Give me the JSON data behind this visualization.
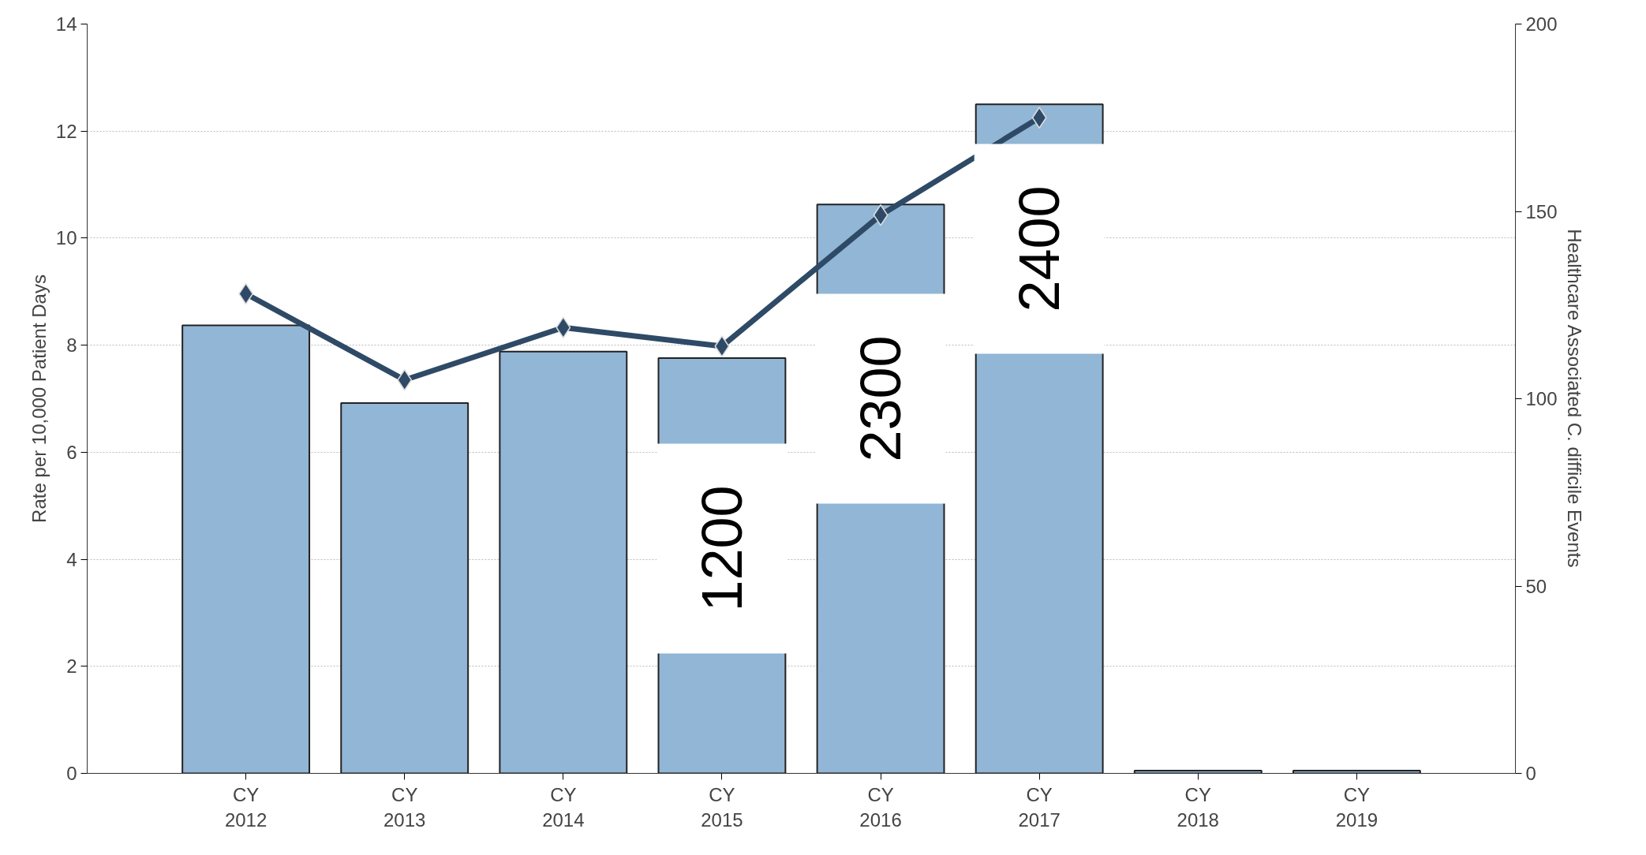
{
  "chart_data": {
    "type": "bar",
    "ylabel": "Rate per 10,000 Patient Days",
    "y2label": "Healthcare Associated C. difficile Events",
    "categories": [
      "CY 2012",
      "CY 2013",
      "CY 2014",
      "CY 2015",
      "CY 2016",
      "CY 2017",
      "CY 2018",
      "CY 2019"
    ],
    "series": [
      {
        "color": "#92b6d5",
        "values": [
          8.37,
          6.92,
          7.88,
          7.76,
          10.63,
          12.5,
          0.05,
          0.05
        ]
      },
      {
        "type": "line",
        "axis": "y2",
        "color": "#2e4a66",
        "marker": "diamond",
        "line_style": "solid",
        "values": [
          128,
          105,
          119,
          114,
          149,
          175,
          null,
          null
        ]
      }
    ],
    "ylim": [
      0,
      14
    ],
    "yticks": [
      0,
      2,
      4,
      6,
      8,
      10,
      12,
      14
    ],
    "y2lim": [
      0,
      200
    ],
    "y2ticks": [
      0,
      50,
      100,
      150,
      200
    ],
    "grid": "y",
    "annotations": [
      "1200",
      "2300",
      "2400"
    ]
  }
}
